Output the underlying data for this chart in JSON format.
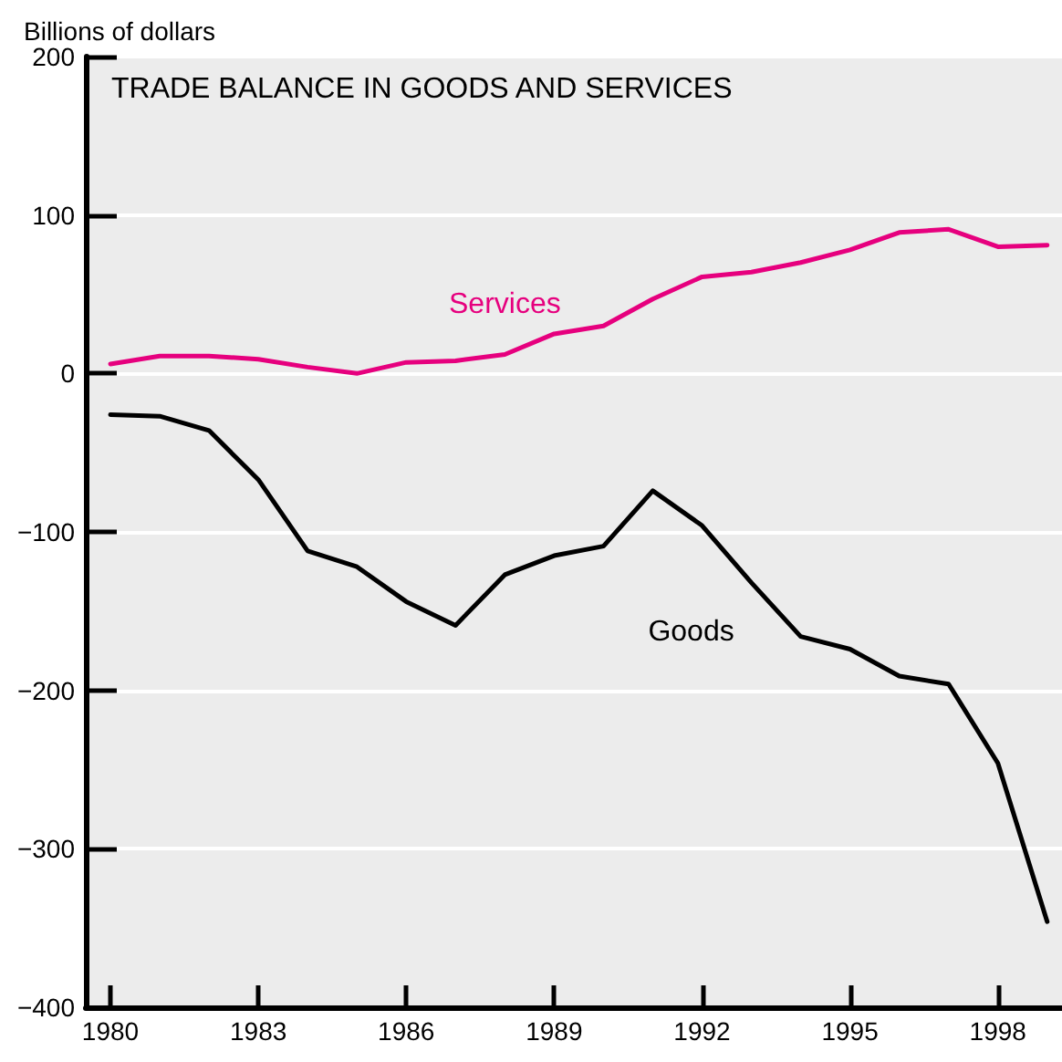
{
  "chart_data": {
    "type": "line",
    "title": "TRADE BALANCE IN GOODS AND SERVICES",
    "ylabel": "Billions of dollars",
    "x": [
      1980,
      1981,
      1982,
      1983,
      1984,
      1985,
      1986,
      1987,
      1988,
      1989,
      1990,
      1991,
      1992,
      1993,
      1994,
      1995,
      1996,
      1997,
      1998,
      1999
    ],
    "series": [
      {
        "name": "Services",
        "color": "#e6007e",
        "values": [
          6,
          11,
          11,
          9,
          4,
          0,
          7,
          8,
          12,
          25,
          30,
          47,
          61,
          64,
          70,
          78,
          89,
          91,
          80,
          81
        ]
      },
      {
        "name": "Goods",
        "color": "#000000",
        "values": [
          -26,
          -27,
          -36,
          -67,
          -112,
          -122,
          -144,
          -159,
          -127,
          -115,
          -109,
          -74,
          -96,
          -132,
          -166,
          -174,
          -191,
          -196,
          -246,
          -346
        ]
      }
    ],
    "xlim": [
      1979.5,
      1999.3
    ],
    "xticks": [
      1980,
      1983,
      1986,
      1989,
      1992,
      1995,
      1998
    ],
    "ylim": [
      -400,
      200
    ],
    "yticks": [
      -400,
      -300,
      -200,
      -100,
      0,
      100,
      200
    ],
    "grid": "y",
    "legend": false,
    "marker": "none",
    "line_style": "solid"
  }
}
